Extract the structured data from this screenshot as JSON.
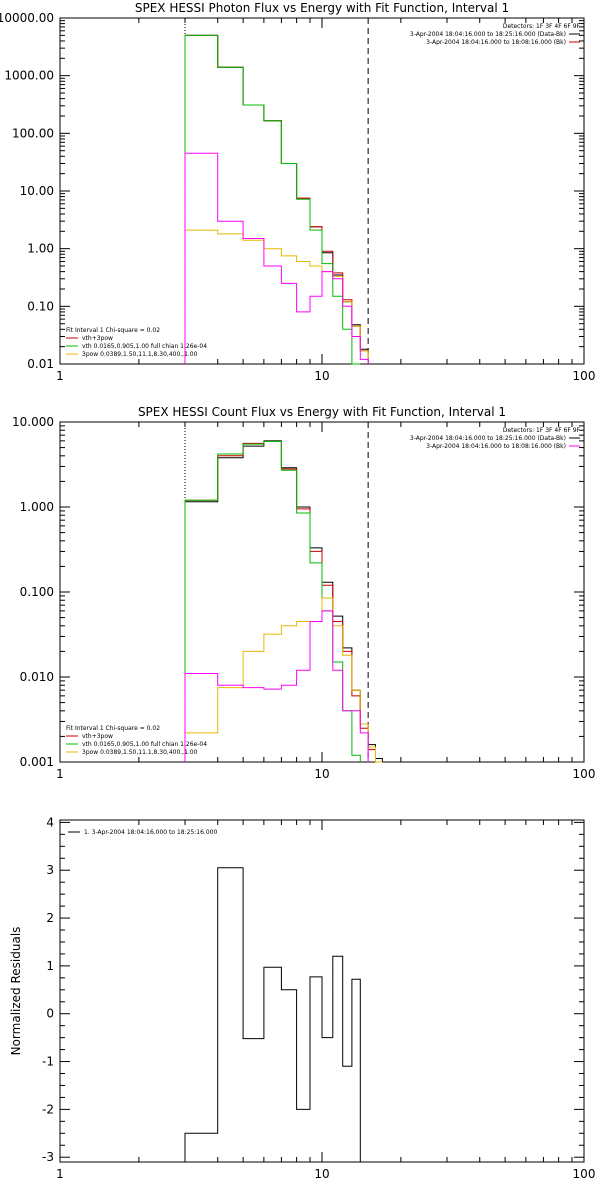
{
  "chart_data": [
    {
      "type": "line",
      "title": "SPEX HESSI Photon Flux vs Energy with Fit Function, Interval 1",
      "xscale": "log",
      "yscale": "log",
      "xlim": [
        1,
        100
      ],
      "ylim": [
        0.01,
        10000
      ],
      "xticks": [
        {
          "v": 1,
          "label": "1"
        },
        {
          "v": 10,
          "label": "10"
        },
        {
          "v": 100,
          "label": "100"
        }
      ],
      "yticks": [
        {
          "v": 0.01,
          "label": "0.01"
        },
        {
          "v": 0.1,
          "label": "0.10"
        },
        {
          "v": 1,
          "label": "1.00"
        },
        {
          "v": 10,
          "label": "10.00"
        },
        {
          "v": 100,
          "label": "100.00"
        },
        {
          "v": 1000,
          "label": "1000.00"
        },
        {
          "v": 10000,
          "label": "10000.00"
        }
      ],
      "vlines": [
        {
          "x": 3,
          "style": "dotted"
        },
        {
          "x": 15,
          "style": "dashed"
        }
      ],
      "detectors": "Detectors: 1F 3F 4F 6F 9F",
      "intervals": [
        {
          "text": "3-Apr-2004 18:04:16.000 to 18:25:16.000 (Data-Bk)",
          "color": "#000000"
        },
        {
          "text": "3-Apr-2004 18:04:16.000 to 18:08:16.000 (Bk)",
          "color": "#cc0000"
        }
      ],
      "fit_info": "Fit Interval 1   Chi-square = 0.02",
      "fit_legend": [
        {
          "text": "vth+3pow",
          "color": "#cc0000"
        },
        {
          "text": "vth 0.0165,0.905,1.00  full chian 1.26e-04",
          "color": "#00bb00"
        },
        {
          "text": "3pow 0.0389,1.50,11.1,8.30,400.,1.00",
          "color": "#e8b800"
        }
      ],
      "edges": [
        3,
        4,
        5,
        6,
        7,
        8,
        9,
        10,
        11,
        12,
        13,
        14,
        15,
        16,
        17,
        18
      ],
      "series": [
        {
          "color": "#000000",
          "values": [
            5000,
            1400,
            310,
            165,
            30,
            7.5,
            2.4,
            0.85,
            0.35,
            0.12,
            0.048,
            0.018,
            null,
            null,
            null
          ]
        },
        {
          "color": "#cc0000",
          "values": [
            5000,
            1400,
            310,
            165,
            30,
            7.5,
            2.4,
            0.9,
            0.38,
            0.13,
            0.045,
            0.017,
            null,
            null,
            null
          ]
        },
        {
          "color": "#00bb00",
          "values": [
            5000,
            1400,
            310,
            165,
            30,
            7.2,
            2.1,
            0.55,
            0.15,
            0.04,
            0.01,
            null,
            null,
            null,
            null
          ]
        },
        {
          "color": "#e8b800",
          "values": [
            2.1,
            1.8,
            1.4,
            1.0,
            0.75,
            0.6,
            0.5,
            0.4,
            0.33,
            0.12,
            0.045,
            0.017,
            null,
            null,
            null
          ]
        },
        {
          "color": "#ff00ff",
          "values": [
            45,
            3.0,
            1.5,
            0.5,
            0.25,
            0.08,
            0.15,
            0.4,
            0.3,
            0.1,
            0.03,
            0.012,
            null,
            null,
            null
          ]
        }
      ]
    },
    {
      "type": "line",
      "title": "SPEX HESSI Count Flux vs Energy with Fit Function, Interval 1",
      "xscale": "log",
      "yscale": "log",
      "xlim": [
        1,
        100
      ],
      "ylim": [
        0.001,
        10
      ],
      "xticks": [
        {
          "v": 1,
          "label": "1"
        },
        {
          "v": 10,
          "label": "10"
        },
        {
          "v": 100,
          "label": "100"
        }
      ],
      "yticks": [
        {
          "v": 0.001,
          "label": "0.001"
        },
        {
          "v": 0.01,
          "label": "0.010"
        },
        {
          "v": 0.1,
          "label": "0.100"
        },
        {
          "v": 1,
          "label": "1.000"
        },
        {
          "v": 10,
          "label": "10.000"
        }
      ],
      "vlines": [
        {
          "x": 3,
          "style": "dotted"
        },
        {
          "x": 15,
          "style": "dashed"
        }
      ],
      "detectors": "Detectors: 1F 3F 4F 6F 9F",
      "intervals": [
        {
          "text": "3-Apr-2004 18:04:16.000 to 18:25:16.000 (Data-Bk)",
          "color": "#000000"
        },
        {
          "text": "3-Apr-2004 18:04:16.000 to 18:08:16.000 (Bk)",
          "color": "#ff00ff"
        }
      ],
      "fit_info": "Fit Interval 1   Chi-square = 0.02",
      "fit_legend": [
        {
          "text": "vth+3pow",
          "color": "#cc0000"
        },
        {
          "text": "vth 0.0165,0.905,1.00  full chian 1.26e-04",
          "color": "#00bb00"
        },
        {
          "text": "3pow 0.0389,1.50,11.1,8.30,400.,1.00",
          "color": "#e8b800"
        }
      ],
      "edges": [
        3,
        4,
        5,
        6,
        7,
        8,
        9,
        10,
        11,
        12,
        13,
        14,
        15,
        16,
        17,
        18
      ],
      "series": [
        {
          "color": "#000000",
          "values": [
            1.15,
            3.8,
            5.2,
            6.0,
            2.9,
            1.0,
            0.33,
            0.13,
            0.052,
            0.022,
            0.007,
            0.0028,
            0.0016,
            0.0011,
            null
          ]
        },
        {
          "color": "#cc0000",
          "values": [
            1.2,
            4.0,
            5.6,
            5.9,
            2.8,
            0.95,
            0.3,
            0.12,
            0.045,
            0.02,
            0.006,
            0.0025,
            0.0014,
            0.001,
            null
          ]
        },
        {
          "color": "#00bb00",
          "values": [
            1.2,
            4.2,
            5.5,
            5.9,
            2.7,
            0.85,
            0.22,
            0.06,
            0.015,
            0.004,
            0.0012,
            null,
            null,
            null,
            null
          ]
        },
        {
          "color": "#e8b800",
          "values": [
            0.0022,
            0.0075,
            0.02,
            0.032,
            0.04,
            0.045,
            0.045,
            0.085,
            0.04,
            0.018,
            0.007,
            0.0028,
            0.0015,
            0.001,
            null
          ]
        },
        {
          "color": "#ff00ff",
          "values": [
            0.011,
            0.008,
            0.0075,
            0.0072,
            0.008,
            0.012,
            0.045,
            0.06,
            0.012,
            0.004,
            0.004,
            0.0022,
            null,
            null,
            null
          ]
        }
      ]
    },
    {
      "type": "line",
      "ylabel": "Normalized Residuals",
      "xscale": "log",
      "yscale": "linear",
      "xlim": [
        1,
        100
      ],
      "ylim": [
        -3.1,
        4.05
      ],
      "xticks": [
        {
          "v": 1,
          "label": "1"
        },
        {
          "v": 10,
          "label": "10"
        },
        {
          "v": 100,
          "label": "100"
        }
      ],
      "yticks": [
        {
          "v": -3,
          "label": "-3"
        },
        {
          "v": -2,
          "label": "-2"
        },
        {
          "v": -1,
          "label": "-1"
        },
        {
          "v": 0,
          "label": "0"
        },
        {
          "v": 1,
          "label": "1"
        },
        {
          "v": 2,
          "label": "2"
        },
        {
          "v": 3,
          "label": "3"
        },
        {
          "v": 4,
          "label": "4"
        }
      ],
      "legend": "1.  3-Apr-2004 18:04:16.000 to 18:25:16.000",
      "edges": [
        3,
        4,
        5,
        6,
        7,
        8,
        9,
        10,
        11,
        12,
        13,
        14,
        15
      ],
      "values": [
        -2.5,
        3.05,
        -0.52,
        0.97,
        0.5,
        -2.0,
        0.77,
        -0.5,
        1.2,
        -1.1,
        0.72,
        null
      ]
    }
  ]
}
